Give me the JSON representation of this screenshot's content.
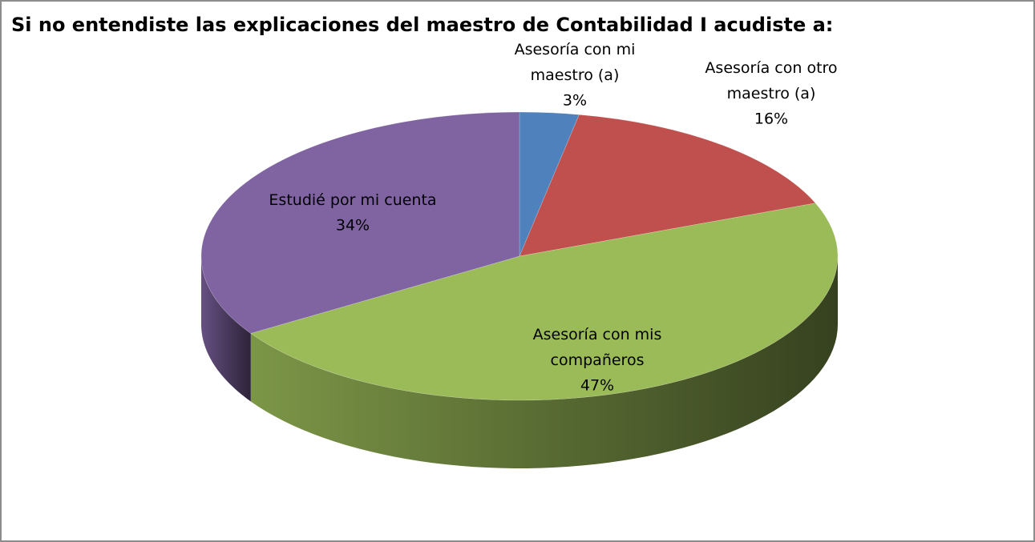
{
  "chart_data": {
    "type": "pie3d",
    "title": "Si no entendiste las explicaciones del maestro de Contabilidad I acudiste a:",
    "categories": [
      "Asesoría con mi maestro (a)",
      "Asesoría con otro maestro (a)",
      "Asesoría con mis compañeros",
      "Estudié por mi cuenta"
    ],
    "values": [
      3,
      16,
      47,
      34
    ],
    "value_labels": [
      "3%",
      "16%",
      "47%",
      "34%"
    ],
    "colors": [
      "#4f81bd",
      "#c0504d",
      "#9bbb59",
      "#8064a2"
    ]
  }
}
